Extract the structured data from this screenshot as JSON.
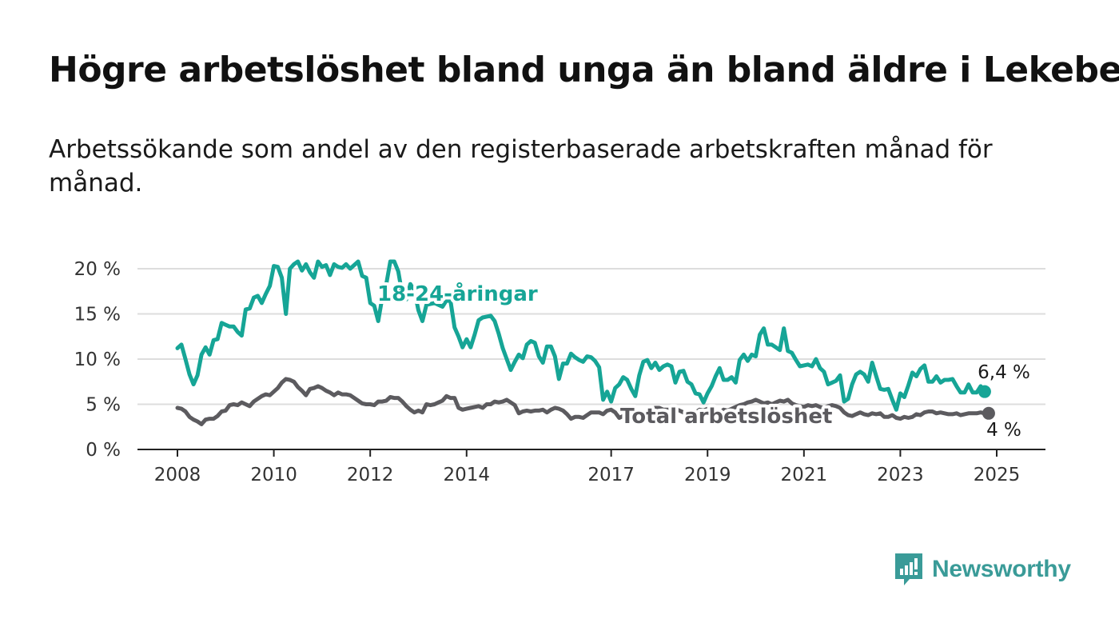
{
  "title": "Högre arbetslöshet bland unga än bland äldre i Lekeberg",
  "subtitle": "Arbetssökande som andel av den registerbaserade arbetskraften månad för månad.",
  "brand": {
    "name": "Newsworthy",
    "color": "#3a9b98",
    "icon": "bar-chart-speech-bubble-icon"
  },
  "chart_data": {
    "type": "line",
    "x_axis": {
      "ticks": [
        "2008",
        "2010",
        "2012",
        "2014",
        "2017",
        "2019",
        "2021",
        "2023",
        "2025"
      ],
      "range": [
        2008,
        2025.3
      ]
    },
    "y_axis": {
      "ticks": [
        "0 %",
        "5 %",
        "10 %",
        "15 %",
        "20 %"
      ],
      "range": [
        0,
        20
      ],
      "grid": true
    },
    "series": [
      {
        "name": "18-24-åringar",
        "color": "#16a596",
        "end_label": "6,4 %",
        "x_start": 2008.0,
        "step_years": 0.0833333,
        "values": [
          11.2,
          11.6,
          10.0,
          8.3,
          7.2,
          8.2,
          10.5,
          11.3,
          10.5,
          12.1,
          12.2,
          14.0,
          13.8,
          13.6,
          13.6,
          13.0,
          12.6,
          15.5,
          15.6,
          16.8,
          17.0,
          16.2,
          17.2,
          18.1,
          20.3,
          20.2,
          19.0,
          15.0,
          20.0,
          20.5,
          20.8,
          19.8,
          20.5,
          19.6,
          19.0,
          20.8,
          20.2,
          20.4,
          19.3,
          20.5,
          20.2,
          20.1,
          20.5,
          20.0,
          20.4,
          20.8,
          19.2,
          19.0,
          16.2,
          15.9,
          14.2,
          16.8,
          18.3,
          20.8,
          20.8,
          19.7,
          17.1,
          16.6,
          18.3,
          17.6,
          15.4,
          14.2,
          16.0,
          16.1,
          16.2,
          16.0,
          15.8,
          16.5,
          16.4,
          13.5,
          12.5,
          11.3,
          12.2,
          11.3,
          12.7,
          14.3,
          14.6,
          14.7,
          14.8,
          14.2,
          12.8,
          11.2,
          10.0,
          8.8,
          9.7,
          10.5,
          10.1,
          11.6,
          12.0,
          11.8,
          10.3,
          9.6,
          11.4,
          11.4,
          10.3,
          7.8,
          9.5,
          9.5,
          10.6,
          10.2,
          9.9,
          9.7,
          10.3,
          10.2,
          9.8,
          9.1,
          5.5,
          6.4,
          5.3,
          6.8,
          7.2,
          8.0,
          7.7,
          6.7,
          5.9,
          8.2,
          9.7,
          9.9,
          9.0,
          9.6,
          8.8,
          9.2,
          9.4,
          9.2,
          7.4,
          8.6,
          8.7,
          7.5,
          7.2,
          6.2,
          6.1,
          5.2,
          6.2,
          7.0,
          8.1,
          9.0,
          7.7,
          7.7,
          8.0,
          7.4,
          9.9,
          10.5,
          9.8,
          10.5,
          10.3,
          12.7,
          13.4,
          11.6,
          11.6,
          11.3,
          11.0,
          13.4,
          10.9,
          10.7,
          9.9,
          9.2,
          9.3,
          9.4,
          9.2,
          10.0,
          9.0,
          8.6,
          7.2,
          7.4,
          7.6,
          8.2,
          5.3,
          5.6,
          7.2,
          8.3,
          8.6,
          8.3,
          7.5,
          9.6,
          8.1,
          6.7,
          6.6,
          6.7,
          5.5,
          4.4,
          6.2,
          5.8,
          7.1,
          8.5,
          8.1,
          8.9,
          9.3,
          7.5,
          7.5,
          8.1,
          7.4,
          7.7,
          7.7,
          7.8,
          7.0,
          6.3,
          6.3,
          7.2,
          6.3,
          6.3,
          7.0,
          6.4
        ]
      },
      {
        "name": "Total arbetslöshet",
        "color": "#5c5b5f",
        "end_label": "4 %",
        "x_start": 2008.0,
        "step_years": 0.0833333,
        "values": [
          4.6,
          4.5,
          4.2,
          3.6,
          3.3,
          3.1,
          2.8,
          3.3,
          3.4,
          3.4,
          3.7,
          4.2,
          4.3,
          4.9,
          5.0,
          4.9,
          5.2,
          5.0,
          4.8,
          5.3,
          5.6,
          5.9,
          6.1,
          6.0,
          6.4,
          6.8,
          7.4,
          7.8,
          7.7,
          7.5,
          6.9,
          6.5,
          6.0,
          6.7,
          6.8,
          7.0,
          6.8,
          6.5,
          6.3,
          6.0,
          6.3,
          6.1,
          6.1,
          6.0,
          5.7,
          5.4,
          5.1,
          5.0,
          5.0,
          4.9,
          5.3,
          5.3,
          5.4,
          5.8,
          5.7,
          5.7,
          5.3,
          4.8,
          4.4,
          4.1,
          4.3,
          4.1,
          5.0,
          4.9,
          5.0,
          5.2,
          5.4,
          5.9,
          5.7,
          5.7,
          4.6,
          4.4,
          4.5,
          4.6,
          4.7,
          4.8,
          4.6,
          5.0,
          5.0,
          5.3,
          5.2,
          5.3,
          5.5,
          5.2,
          4.9,
          4.0,
          4.2,
          4.3,
          4.2,
          4.3,
          4.3,
          4.4,
          4.1,
          4.4,
          4.6,
          4.5,
          4.3,
          3.9,
          3.4,
          3.6,
          3.6,
          3.5,
          3.8,
          4.1,
          4.1,
          4.1,
          3.9,
          4.3,
          4.4,
          4.1,
          3.5,
          3.7,
          4.0,
          4.2,
          4.1,
          3.9,
          4.0,
          4.3,
          4.5,
          4.6,
          4.6,
          4.4,
          4.4,
          4.4,
          4.5,
          4.3,
          4.1,
          3.9,
          3.9,
          4.1,
          4.4,
          4.3,
          4.5,
          4.3,
          4.1,
          4.0,
          4.4,
          4.3,
          4.5,
          4.7,
          4.9,
          5.0,
          5.2,
          5.3,
          5.5,
          5.3,
          5.1,
          5.2,
          5.0,
          5.2,
          5.4,
          5.3,
          5.5,
          5.1,
          4.9,
          4.8,
          4.7,
          4.9,
          4.8,
          4.9,
          4.7,
          4.6,
          4.8,
          4.9,
          4.8,
          4.6,
          4.1,
          3.8,
          3.7,
          3.9,
          4.1,
          3.9,
          3.8,
          4.0,
          3.9,
          4.0,
          3.6,
          3.6,
          3.8,
          3.5,
          3.4,
          3.6,
          3.5,
          3.6,
          3.9,
          3.8,
          4.1,
          4.2,
          4.2,
          4.0,
          4.1,
          4.0,
          3.9,
          3.9,
          4.0,
          3.8,
          3.9,
          4.0,
          4.0,
          4.0,
          4.1,
          4.0,
          4.0
        ]
      }
    ]
  }
}
